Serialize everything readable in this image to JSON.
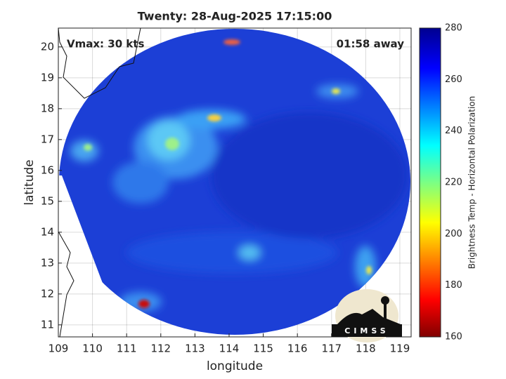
{
  "chart_data": {
    "type": "image",
    "title": "Twenty: 28-Aug-2025 17:15:00",
    "annotations": [
      "Vmax: 30 kts",
      "01:58 away"
    ],
    "xlabel": "longitude",
    "ylabel": "latitude",
    "xlim": [
      109,
      119.33
    ],
    "ylim": [
      10.61,
      20.61
    ],
    "xticks": [
      109,
      110,
      111,
      112,
      113,
      114,
      115,
      116,
      117,
      118,
      119
    ],
    "yticks": [
      11,
      12,
      13,
      14,
      15,
      16,
      17,
      18,
      19,
      20
    ],
    "grid": true,
    "colorbar": {
      "label": "Brightness Temp - Horizontal Polarization",
      "lim": [
        160,
        280
      ],
      "ticks": [
        160,
        180,
        200,
        220,
        240,
        260,
        280
      ]
    }
  },
  "logo": "CIMSS"
}
